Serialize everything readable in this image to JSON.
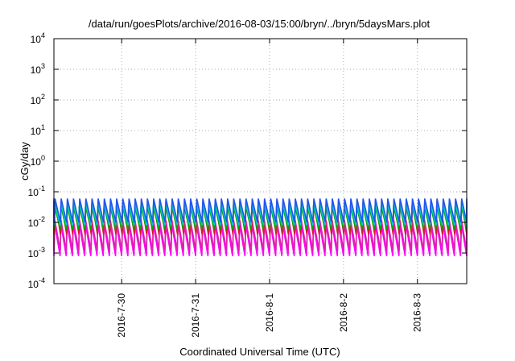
{
  "chart_data": {
    "type": "line",
    "title": "/data/run/goesPlots/archive/2016-08-03/15:00/bryn/../bryn/5daysMars.plot",
    "xlabel": "Coordinated Universal Time (UTC)",
    "ylabel": "cGy/day",
    "y_scale": "log",
    "ylim": [
      0.0001,
      10000
    ],
    "y_ticks": [
      {
        "value": 0.0001,
        "base": "10",
        "exp": "-4"
      },
      {
        "value": 0.001,
        "base": "10",
        "exp": "-3"
      },
      {
        "value": 0.01,
        "base": "10",
        "exp": "-2"
      },
      {
        "value": 0.1,
        "base": "10",
        "exp": "-1"
      },
      {
        "value": 1,
        "base": "10",
        "exp": "0"
      },
      {
        "value": 10,
        "base": "10",
        "exp": "1"
      },
      {
        "value": 100,
        "base": "10",
        "exp": "2"
      },
      {
        "value": 1000,
        "base": "10",
        "exp": "3"
      },
      {
        "value": 10000,
        "base": "10",
        "exp": "4"
      }
    ],
    "x_range": [
      "2016-07-29 02:00",
      "2016-08-03 16:00"
    ],
    "x_ticks": [
      {
        "value": "2016-07-30 00:00",
        "label": "2016-7-30"
      },
      {
        "value": "2016-07-31 00:00",
        "label": "2016-7-31"
      },
      {
        "value": "2016-08-01 00:00",
        "label": "2016-8-1"
      },
      {
        "value": "2016-08-02 00:00",
        "label": "2016-8-2"
      },
      {
        "value": "2016-08-03 00:00",
        "label": "2016-8-3"
      }
    ],
    "grid": true,
    "legend": "none",
    "sawtooth_cycles_per_day": 12,
    "series": [
      {
        "color": "#ff00ff",
        "peak": 0.009,
        "trough": 0.0008
      },
      {
        "color": "#dd22aa",
        "peak": 0.012,
        "trough": 0.0012
      },
      {
        "color": "#cc2222",
        "peak": 0.05,
        "trough": 0.004
      },
      {
        "color": "#00aa00",
        "peak": 0.035,
        "trough": 0.006
      },
      {
        "color": "#00cccc",
        "peak": 0.04,
        "trough": 0.008
      },
      {
        "color": "#2255ee",
        "peak": 0.06,
        "trough": 0.01
      }
    ]
  }
}
